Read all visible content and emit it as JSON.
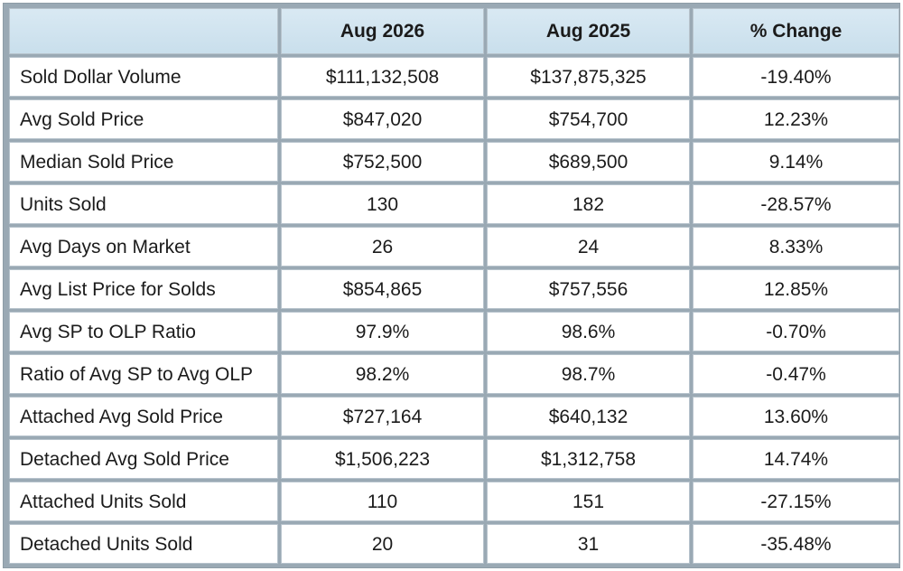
{
  "table": {
    "headers": [
      "",
      "Aug 2026",
      "Aug 2025",
      "% Change"
    ],
    "rows": [
      {
        "metric": "Sold Dollar Volume",
        "current": "$111,132,508",
        "previous": "$137,875,325",
        "change": "-19.40%"
      },
      {
        "metric": "Avg Sold Price",
        "current": "$847,020",
        "previous": "$754,700",
        "change": "12.23%"
      },
      {
        "metric": "Median Sold Price",
        "current": "$752,500",
        "previous": "$689,500",
        "change": "9.14%"
      },
      {
        "metric": "Units Sold",
        "current": "130",
        "previous": "182",
        "change": "-28.57%"
      },
      {
        "metric": "Avg Days on Market",
        "current": "26",
        "previous": "24",
        "change": "8.33%"
      },
      {
        "metric": "Avg List Price for Solds",
        "current": "$854,865",
        "previous": "$757,556",
        "change": "12.85%"
      },
      {
        "metric": "Avg SP to OLP Ratio",
        "current": "97.9%",
        "previous": "98.6%",
        "change": "-0.70%"
      },
      {
        "metric": "Ratio of Avg SP to Avg OLP",
        "current": "98.2%",
        "previous": "98.7%",
        "change": "-0.47%"
      },
      {
        "metric": "Attached Avg Sold Price",
        "current": "$727,164",
        "previous": "$640,132",
        "change": "13.60%"
      },
      {
        "metric": "Detached Avg Sold Price",
        "current": "$1,506,223",
        "previous": "$1,312,758",
        "change": "14.74%"
      },
      {
        "metric": "Attached Units Sold",
        "current": "110",
        "previous": "151",
        "change": "-27.15%"
      },
      {
        "metric": "Detached Units Sold",
        "current": "20",
        "previous": "31",
        "change": "-35.48%"
      }
    ]
  }
}
